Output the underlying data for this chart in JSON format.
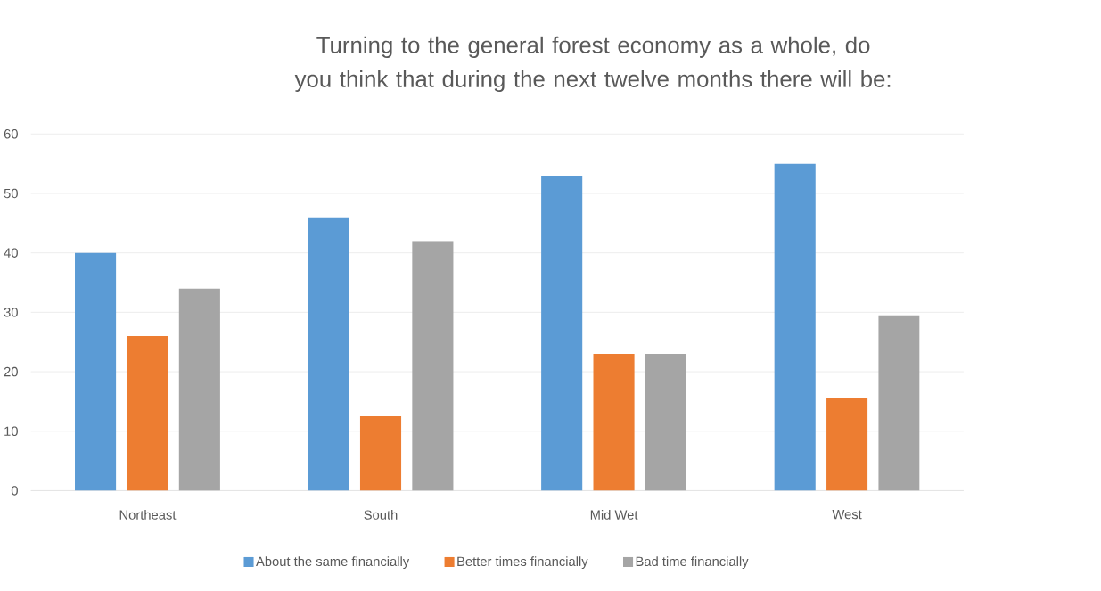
{
  "chart_data": {
    "type": "bar",
    "title": "Turning to the general forest economy as a whole, do you think that during the next twelve months there will be:",
    "categories": [
      "Northeast",
      "South",
      "Mid Wet",
      "West"
    ],
    "series": [
      {
        "name": "About the same financially",
        "color": "#5b9bd5",
        "values": [
          40,
          46,
          53,
          55
        ]
      },
      {
        "name": "Better times financially",
        "color": "#ed7d31",
        "values": [
          26,
          12.5,
          23,
          15.5
        ]
      },
      {
        "name": "Bad time financially",
        "color": "#a5a5a5",
        "values": [
          34,
          42,
          23,
          29.5
        ]
      }
    ],
    "ylim": [
      0,
      60
    ],
    "yticks": [
      0,
      10,
      20,
      30,
      40,
      50,
      60
    ],
    "grid": "y",
    "legend": "bottom"
  }
}
